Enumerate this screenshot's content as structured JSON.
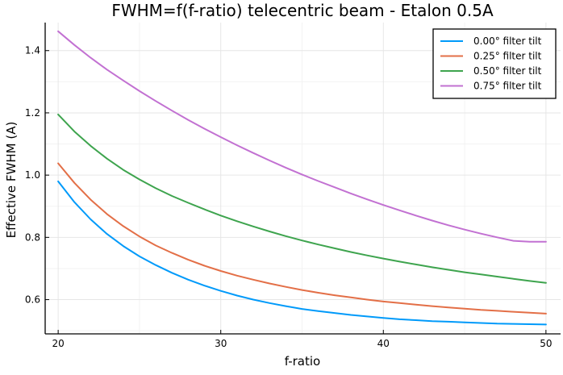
{
  "chart_data": {
    "type": "line",
    "title": "FWHM=f(f-ratio) telecentric beam - Etalon 0.5A",
    "xlabel": "f-ratio",
    "ylabel": "Effective FWHM (A)",
    "xlim": [
      19.2,
      50.9
    ],
    "ylim": [
      0.49,
      1.49
    ],
    "x_ticks": [
      20,
      30,
      40,
      50
    ],
    "x_tick_labels": [
      "20",
      "30",
      "40",
      "50"
    ],
    "y_ticks": [
      0.6,
      0.8,
      1.0,
      1.2,
      1.4
    ],
    "y_tick_labels": [
      "0.6",
      "0.8",
      "1.0",
      "1.2",
      "1.4"
    ],
    "grid": true,
    "legend_position": "top-right",
    "x": [
      20,
      21,
      22,
      23,
      24,
      25,
      26,
      27,
      28,
      29,
      30,
      31,
      32,
      33,
      34,
      35,
      36,
      37,
      38,
      39,
      40,
      41,
      42,
      43,
      44,
      45,
      46,
      47,
      48,
      49,
      50
    ],
    "series": [
      {
        "name": "0.00° filter tilt",
        "color": "#009AFA",
        "values": [
          0.98,
          0.913,
          0.858,
          0.811,
          0.772,
          0.739,
          0.711,
          0.686,
          0.664,
          0.645,
          0.628,
          0.613,
          0.6,
          0.589,
          0.579,
          0.57,
          0.563,
          0.557,
          0.551,
          0.546,
          0.541,
          0.537,
          0.534,
          0.531,
          0.529,
          0.527,
          0.525,
          0.523,
          0.522,
          0.521,
          0.52
        ]
      },
      {
        "name": "0.25° filter tilt",
        "color": "#E36F47",
        "values": [
          1.038,
          0.975,
          0.921,
          0.875,
          0.836,
          0.803,
          0.774,
          0.75,
          0.728,
          0.709,
          0.692,
          0.677,
          0.664,
          0.652,
          0.641,
          0.631,
          0.622,
          0.614,
          0.607,
          0.6,
          0.594,
          0.589,
          0.584,
          0.579,
          0.575,
          0.571,
          0.567,
          0.564,
          0.561,
          0.558,
          0.555
        ]
      },
      {
        "name": "0.50° filter tilt",
        "color": "#3EA44E",
        "values": [
          1.195,
          1.14,
          1.094,
          1.053,
          1.017,
          0.986,
          0.958,
          0.933,
          0.911,
          0.89,
          0.87,
          0.852,
          0.835,
          0.819,
          0.804,
          0.79,
          0.777,
          0.765,
          0.753,
          0.742,
          0.732,
          0.722,
          0.713,
          0.704,
          0.696,
          0.688,
          0.681,
          0.674,
          0.667,
          0.66,
          0.654
        ]
      },
      {
        "name": "0.75° filter tilt",
        "color": "#C271D2",
        "values": [
          1.462,
          1.418,
          1.377,
          1.339,
          1.304,
          1.27,
          1.238,
          1.207,
          1.177,
          1.149,
          1.122,
          1.096,
          1.071,
          1.047,
          1.024,
          1.002,
          0.981,
          0.961,
          0.941,
          0.922,
          0.904,
          0.887,
          0.87,
          0.854,
          0.839,
          0.825,
          0.812,
          0.8,
          0.789,
          0.786,
          0.786
        ]
      }
    ]
  }
}
